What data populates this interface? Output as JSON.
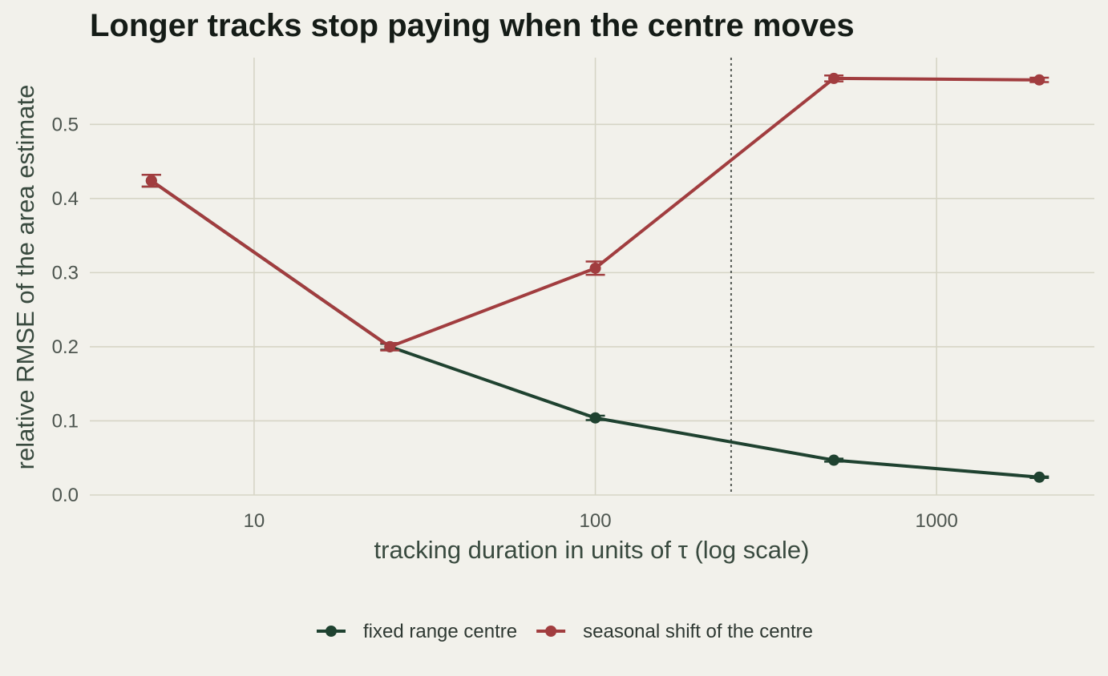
{
  "chart_data": {
    "type": "line",
    "title": "Longer tracks stop paying when the centre moves",
    "xlabel": "tracking duration in units of τ (log scale)",
    "ylabel": "relative RMSE of the area estimate",
    "x_scale": "log",
    "xlim": [
      3.3,
      2900
    ],
    "ylim": [
      0,
      0.59
    ],
    "x_ticks": [
      10,
      100,
      1000
    ],
    "x_tick_labels": [
      "10",
      "100",
      "1000"
    ],
    "y_ticks": [
      0,
      0.1,
      0.2,
      0.3,
      0.4,
      0.5
    ],
    "y_tick_labels": [
      "0.0",
      "0.1",
      "0.2",
      "0.3",
      "0.4",
      "0.5"
    ],
    "grid": true,
    "reference_line": {
      "x": 250,
      "style": "dotted"
    },
    "legend_position": "bottom",
    "x": [
      5,
      25,
      100,
      500,
      2000
    ],
    "series": [
      {
        "name": "fixed range centre",
        "color": "#1f4230",
        "values": [
          0.424,
          0.2,
          0.104,
          0.047,
          0.024
        ],
        "error": [
          0.008,
          0.004,
          0.003,
          0.002,
          0.001
        ]
      },
      {
        "name": "seasonal shift of the centre",
        "color": "#a13d3f",
        "values": [
          0.424,
          0.2,
          0.306,
          0.562,
          0.56
        ],
        "error": [
          0.008,
          0.005,
          0.009,
          0.004,
          0.003
        ]
      }
    ]
  }
}
